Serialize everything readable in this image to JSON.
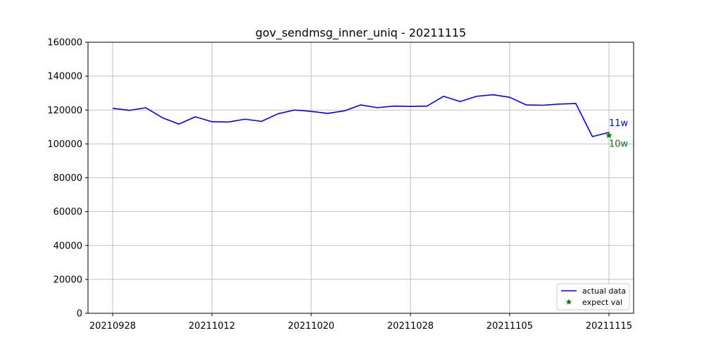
{
  "chart_data": {
    "type": "line",
    "title": "gov_sendmsg_inner_uniq - 20211115",
    "xlabel": "",
    "ylabel": "",
    "grid": true,
    "ylim": [
      0,
      160000
    ],
    "yticks": [
      0,
      20000,
      40000,
      60000,
      80000,
      100000,
      120000,
      140000,
      160000
    ],
    "ytick_labels": [
      "0",
      "20000",
      "40000",
      "60000",
      "80000",
      "100000",
      "120000",
      "140000",
      "160000"
    ],
    "xticks": [
      {
        "index": 0,
        "label": "20210928"
      },
      {
        "index": 6,
        "label": "20211012"
      },
      {
        "index": 12,
        "label": "20211020"
      },
      {
        "index": 18,
        "label": "20211028"
      },
      {
        "index": 24,
        "label": "20211105"
      },
      {
        "index": 30,
        "label": "20211115"
      }
    ],
    "series": [
      {
        "name": "actual data",
        "color": "#0000ff",
        "values": [
          121000,
          119800,
          121300,
          115500,
          111700,
          116000,
          113100,
          112900,
          114600,
          113300,
          117800,
          120000,
          119200,
          118000,
          119500,
          123000,
          121400,
          122300,
          122100,
          122300,
          128100,
          125000,
          128100,
          129000,
          127500,
          123000,
          122800,
          123500,
          123800,
          104300,
          106800
        ]
      }
    ],
    "expected": {
      "name": "expect val",
      "color": "#008000",
      "index": 30,
      "value": 105000
    },
    "annotations": [
      {
        "text": "11w",
        "color": "#0000ff"
      },
      {
        "text": "10w",
        "color": "#008000"
      }
    ],
    "legend_position": "lower-right"
  }
}
